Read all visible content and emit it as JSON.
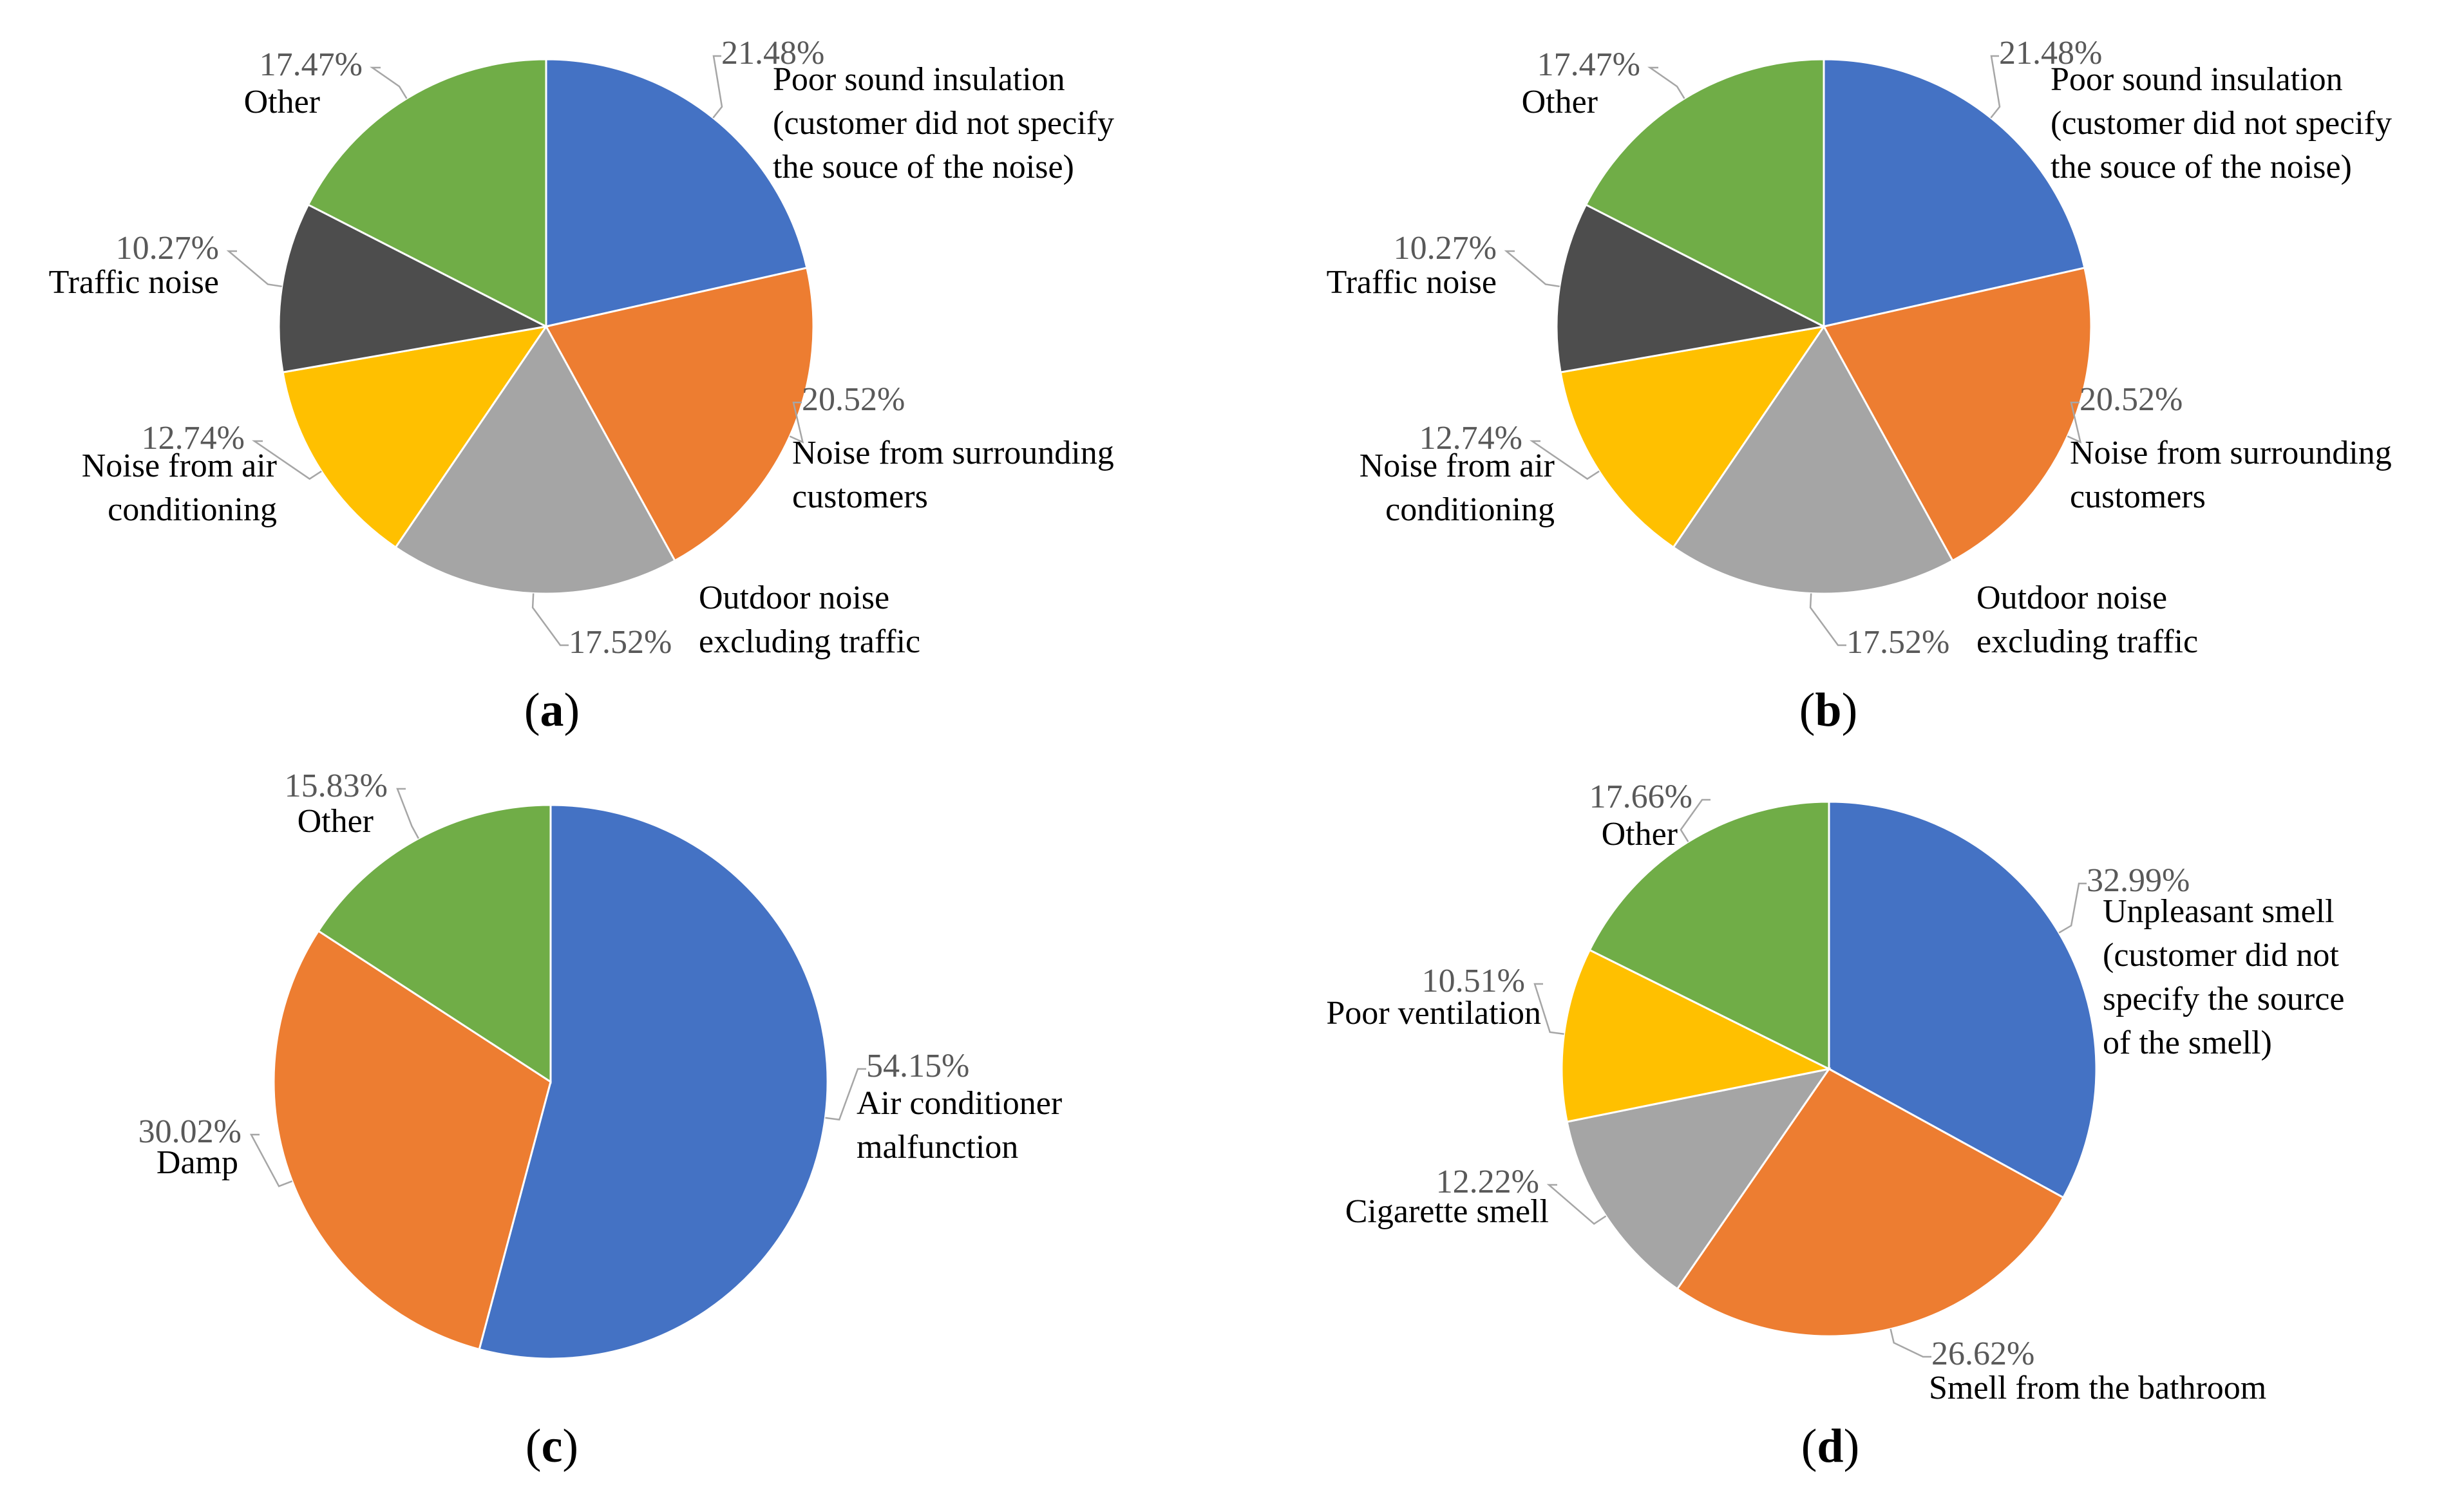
{
  "chart_data": [
    {
      "type": "pie",
      "panel_label": "a",
      "slices": [
        {
          "label": "Poor sound insulation (customer did not specify the souce of the noise)",
          "label_lines": [
            "Poor sound insulation",
            "(customer did not specify",
            "the souce of the noise)"
          ],
          "value": 21.48,
          "value_label": "21.48%",
          "color": "#4472C4"
        },
        {
          "label": "Noise from surrounding customers",
          "label_lines": [
            "Noise from surrounding",
            "customers"
          ],
          "value": 20.52,
          "value_label": "20.52%",
          "color": "#ED7D31"
        },
        {
          "label": "Outdoor noise excluding traffic",
          "label_lines": [
            "Outdoor noise",
            "excluding traffic"
          ],
          "value": 17.52,
          "value_label": "17.52%",
          "color": "#A5A5A5"
        },
        {
          "label": "Noise from air conditioning",
          "label_lines": [
            "Noise from air",
            "conditioning"
          ],
          "value": 12.74,
          "value_label": "12.74%",
          "color": "#FFC000"
        },
        {
          "label": "Traffic noise",
          "label_lines": [
            "Traffic noise"
          ],
          "value": 10.27,
          "value_label": "10.27%",
          "color": "#4D4D4D"
        },
        {
          "label": "Other",
          "label_lines": [
            "Other"
          ],
          "value": 17.47,
          "value_label": "17.47%",
          "color": "#70AD47"
        }
      ]
    },
    {
      "type": "pie",
      "panel_label": "b",
      "slices": [
        {
          "label": "Poor sound insulation (customer did not specify the souce of the noise)",
          "label_lines": [
            "Poor sound insulation",
            "(customer did not specify",
            "the souce of the noise)"
          ],
          "value": 21.48,
          "value_label": "21.48%",
          "color": "#4472C4"
        },
        {
          "label": "Noise from surrounding customers",
          "label_lines": [
            "Noise from surrounding",
            "customers"
          ],
          "value": 20.52,
          "value_label": "20.52%",
          "color": "#ED7D31"
        },
        {
          "label": "Outdoor noise excluding traffic",
          "label_lines": [
            "Outdoor noise",
            "excluding traffic"
          ],
          "value": 17.52,
          "value_label": "17.52%",
          "color": "#A5A5A5"
        },
        {
          "label": "Noise from air conditioning",
          "label_lines": [
            "Noise from air",
            "conditioning"
          ],
          "value": 12.74,
          "value_label": "12.74%",
          "color": "#FFC000"
        },
        {
          "label": "Traffic noise",
          "label_lines": [
            "Traffic noise"
          ],
          "value": 10.27,
          "value_label": "10.27%",
          "color": "#4D4D4D"
        },
        {
          "label": "Other",
          "label_lines": [
            "Other"
          ],
          "value": 17.47,
          "value_label": "17.47%",
          "color": "#70AD47"
        }
      ]
    },
    {
      "type": "pie",
      "panel_label": "c",
      "slices": [
        {
          "label": "Air conditioner malfunction",
          "label_lines": [
            "Air conditioner",
            "malfunction"
          ],
          "value": 54.15,
          "value_label": "54.15%",
          "color": "#4472C4"
        },
        {
          "label": "Damp",
          "label_lines": [
            "Damp"
          ],
          "value": 30.02,
          "value_label": "30.02%",
          "color": "#ED7D31"
        },
        {
          "label": "Other",
          "label_lines": [
            "Other"
          ],
          "value": 15.83,
          "value_label": "15.83%",
          "color": "#70AD47"
        }
      ]
    },
    {
      "type": "pie",
      "panel_label": "d",
      "slices": [
        {
          "label": "Unpleasant smell (customer did not specify the source of the smell)",
          "label_lines": [
            "Unpleasant smell",
            "(customer did not",
            "specify the source",
            "of the smell)"
          ],
          "value": 32.99,
          "value_label": "32.99%",
          "color": "#4472C4"
        },
        {
          "label": "Smell from the bathroom",
          "label_lines": [
            "Smell from the bathroom"
          ],
          "value": 26.62,
          "value_label": "26.62%",
          "color": "#ED7D31"
        },
        {
          "label": "Cigarette smell",
          "label_lines": [
            "Cigarette smell"
          ],
          "value": 12.22,
          "value_label": "12.22%",
          "color": "#A5A5A5"
        },
        {
          "label": "Poor ventilation",
          "label_lines": [
            "Poor ventilation"
          ],
          "value": 10.51,
          "value_label": "10.51%",
          "color": "#FFC000"
        },
        {
          "label": "Other",
          "label_lines": [
            "Other"
          ],
          "value": 17.66,
          "value_label": "17.66%",
          "color": "#70AD47"
        }
      ]
    }
  ]
}
